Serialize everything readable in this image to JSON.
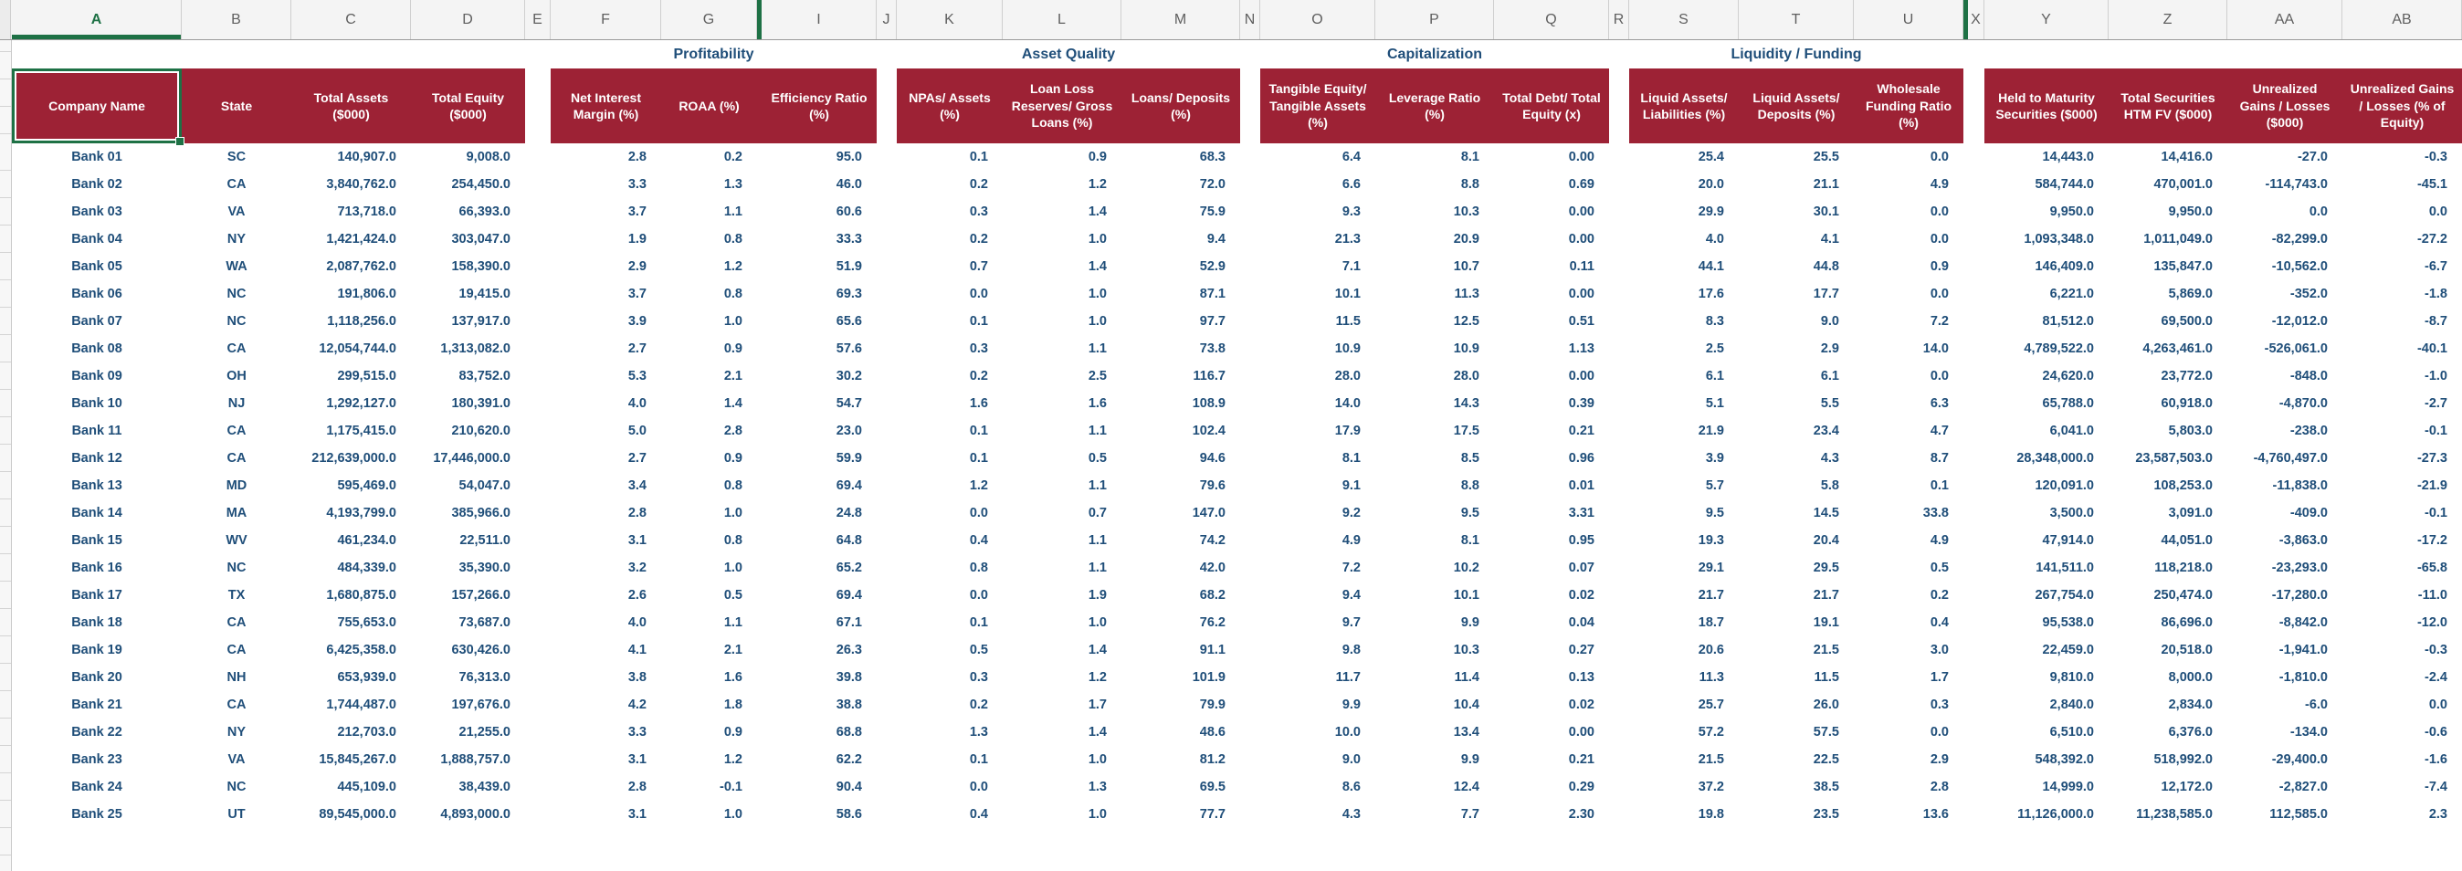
{
  "app": {
    "kind": "spreadsheet",
    "sheet_description": "Bank comparison table"
  },
  "colors": {
    "header_fill": "#9D2235",
    "data_text": "#1F4E79",
    "group_title_text": "#1F4E79",
    "accent_green": "#1E7145"
  },
  "selection": {
    "selected_column_letter": "A",
    "selected_cell_label": "Company Name"
  },
  "groups": [
    {
      "title": "",
      "from": "A",
      "to": "D"
    },
    {
      "title": "Profitability",
      "from": "F",
      "to": "I"
    },
    {
      "title": "Asset Quality",
      "from": "K",
      "to": "M"
    },
    {
      "title": "Capitalization",
      "from": "O",
      "to": "Q"
    },
    {
      "title": "Liquidity / Funding",
      "from": "S",
      "to": "U"
    },
    {
      "title": "",
      "from": "Y",
      "to": "AB"
    }
  ],
  "columns": [
    {
      "letter": "A",
      "kind": "data",
      "align": "center",
      "header": "Company Name",
      "selected": true
    },
    {
      "letter": "B",
      "kind": "data",
      "align": "center",
      "header": "State"
    },
    {
      "letter": "C",
      "kind": "data",
      "align": "right",
      "header": "Total Assets ($000)"
    },
    {
      "letter": "D",
      "kind": "data",
      "align": "right",
      "header": "Total Equity ($000)"
    },
    {
      "letter": "E",
      "kind": "spacer"
    },
    {
      "letter": "F",
      "kind": "data",
      "align": "right",
      "header": "Net Interest Margin (%)"
    },
    {
      "letter": "G",
      "kind": "data",
      "align": "right",
      "header": "ROAA (%)"
    },
    {
      "letter": "H",
      "kind": "hidden"
    },
    {
      "letter": "I",
      "kind": "data",
      "align": "right",
      "header": "Efficiency Ratio (%)"
    },
    {
      "letter": "J",
      "kind": "spacer"
    },
    {
      "letter": "K",
      "kind": "data",
      "align": "right",
      "header": "NPAs/ Assets (%)"
    },
    {
      "letter": "L",
      "kind": "data",
      "align": "right",
      "header": "Loan Loss Reserves/ Gross Loans (%)"
    },
    {
      "letter": "M",
      "kind": "data",
      "align": "right",
      "header": "Loans/ Deposits (%)"
    },
    {
      "letter": "N",
      "kind": "spacer"
    },
    {
      "letter": "O",
      "kind": "data",
      "align": "right",
      "header": "Tangible Equity/ Tangible Assets (%)"
    },
    {
      "letter": "P",
      "kind": "data",
      "align": "right",
      "header": "Leverage Ratio (%)"
    },
    {
      "letter": "Q",
      "kind": "data",
      "align": "right",
      "header": "Total Debt/ Total Equity (x)"
    },
    {
      "letter": "R",
      "kind": "spacer"
    },
    {
      "letter": "S",
      "kind": "data",
      "align": "right",
      "header": "Liquid Assets/ Liabilities (%)"
    },
    {
      "letter": "T",
      "kind": "data",
      "align": "right",
      "header": "Liquid Assets/ Deposits (%)"
    },
    {
      "letter": "U",
      "kind": "data",
      "align": "right",
      "header": "Wholesale Funding Ratio (%)"
    },
    {
      "letter": "V-W",
      "kind": "hidden"
    },
    {
      "letter": "X",
      "kind": "spacer"
    },
    {
      "letter": "Y",
      "kind": "data",
      "align": "right",
      "header": "Held to Maturity Securities ($000)"
    },
    {
      "letter": "Z",
      "kind": "data",
      "align": "right",
      "header": "Total Securities HTM FV ($000)"
    },
    {
      "letter": "AA",
      "kind": "data",
      "align": "right",
      "header": "Unrealized Gains / Losses ($000)"
    },
    {
      "letter": "AB",
      "kind": "data",
      "align": "right",
      "header": "Unrealized Gains / Losses (% of Equity)"
    }
  ],
  "rows": [
    [
      "Bank 01",
      "SC",
      "140,907.0",
      "9,008.0",
      "2.8",
      "0.2",
      "95.0",
      "0.1",
      "0.9",
      "68.3",
      "6.4",
      "8.1",
      "0.00",
      "25.4",
      "25.5",
      "0.0",
      "14,443.0",
      "14,416.0",
      "-27.0",
      "-0.3"
    ],
    [
      "Bank 02",
      "CA",
      "3,840,762.0",
      "254,450.0",
      "3.3",
      "1.3",
      "46.0",
      "0.2",
      "1.2",
      "72.0",
      "6.6",
      "8.8",
      "0.69",
      "20.0",
      "21.1",
      "4.9",
      "584,744.0",
      "470,001.0",
      "-114,743.0",
      "-45.1"
    ],
    [
      "Bank 03",
      "VA",
      "713,718.0",
      "66,393.0",
      "3.7",
      "1.1",
      "60.6",
      "0.3",
      "1.4",
      "75.9",
      "9.3",
      "10.3",
      "0.00",
      "29.9",
      "30.1",
      "0.0",
      "9,950.0",
      "9,950.0",
      "0.0",
      "0.0"
    ],
    [
      "Bank 04",
      "NY",
      "1,421,424.0",
      "303,047.0",
      "1.9",
      "0.8",
      "33.3",
      "0.2",
      "1.0",
      "9.4",
      "21.3",
      "20.9",
      "0.00",
      "4.0",
      "4.1",
      "0.0",
      "1,093,348.0",
      "1,011,049.0",
      "-82,299.0",
      "-27.2"
    ],
    [
      "Bank 05",
      "WA",
      "2,087,762.0",
      "158,390.0",
      "2.9",
      "1.2",
      "51.9",
      "0.7",
      "1.4",
      "52.9",
      "7.1",
      "10.7",
      "0.11",
      "44.1",
      "44.8",
      "0.9",
      "146,409.0",
      "135,847.0",
      "-10,562.0",
      "-6.7"
    ],
    [
      "Bank 06",
      "NC",
      "191,806.0",
      "19,415.0",
      "3.7",
      "0.8",
      "69.3",
      "0.0",
      "1.0",
      "87.1",
      "10.1",
      "11.3",
      "0.00",
      "17.6",
      "17.7",
      "0.0",
      "6,221.0",
      "5,869.0",
      "-352.0",
      "-1.8"
    ],
    [
      "Bank 07",
      "NC",
      "1,118,256.0",
      "137,917.0",
      "3.9",
      "1.0",
      "65.6",
      "0.1",
      "1.0",
      "97.7",
      "11.5",
      "12.5",
      "0.51",
      "8.3",
      "9.0",
      "7.2",
      "81,512.0",
      "69,500.0",
      "-12,012.0",
      "-8.7"
    ],
    [
      "Bank 08",
      "CA",
      "12,054,744.0",
      "1,313,082.0",
      "2.7",
      "0.9",
      "57.6",
      "0.3",
      "1.1",
      "73.8",
      "10.9",
      "10.9",
      "1.13",
      "2.5",
      "2.9",
      "14.0",
      "4,789,522.0",
      "4,263,461.0",
      "-526,061.0",
      "-40.1"
    ],
    [
      "Bank 09",
      "OH",
      "299,515.0",
      "83,752.0",
      "5.3",
      "2.1",
      "30.2",
      "0.2",
      "2.5",
      "116.7",
      "28.0",
      "28.0",
      "0.00",
      "6.1",
      "6.1",
      "0.0",
      "24,620.0",
      "23,772.0",
      "-848.0",
      "-1.0"
    ],
    [
      "Bank 10",
      "NJ",
      "1,292,127.0",
      "180,391.0",
      "4.0",
      "1.4",
      "54.7",
      "1.6",
      "1.6",
      "108.9",
      "14.0",
      "14.3",
      "0.39",
      "5.1",
      "5.5",
      "6.3",
      "65,788.0",
      "60,918.0",
      "-4,870.0",
      "-2.7"
    ],
    [
      "Bank 11",
      "CA",
      "1,175,415.0",
      "210,620.0",
      "5.0",
      "2.8",
      "23.0",
      "0.1",
      "1.1",
      "102.4",
      "17.9",
      "17.5",
      "0.21",
      "21.9",
      "23.4",
      "4.7",
      "6,041.0",
      "5,803.0",
      "-238.0",
      "-0.1"
    ],
    [
      "Bank 12",
      "CA",
      "212,639,000.0",
      "17,446,000.0",
      "2.7",
      "0.9",
      "59.9",
      "0.1",
      "0.5",
      "94.6",
      "8.1",
      "8.5",
      "0.96",
      "3.9",
      "4.3",
      "8.7",
      "28,348,000.0",
      "23,587,503.0",
      "-4,760,497.0",
      "-27.3"
    ],
    [
      "Bank 13",
      "MD",
      "595,469.0",
      "54,047.0",
      "3.4",
      "0.8",
      "69.4",
      "1.2",
      "1.1",
      "79.6",
      "9.1",
      "8.8",
      "0.01",
      "5.7",
      "5.8",
      "0.1",
      "120,091.0",
      "108,253.0",
      "-11,838.0",
      "-21.9"
    ],
    [
      "Bank 14",
      "MA",
      "4,193,799.0",
      "385,966.0",
      "2.8",
      "1.0",
      "24.8",
      "0.0",
      "0.7",
      "147.0",
      "9.2",
      "9.5",
      "3.31",
      "9.5",
      "14.5",
      "33.8",
      "3,500.0",
      "3,091.0",
      "-409.0",
      "-0.1"
    ],
    [
      "Bank 15",
      "WV",
      "461,234.0",
      "22,511.0",
      "3.1",
      "0.8",
      "64.8",
      "0.4",
      "1.1",
      "74.2",
      "4.9",
      "8.1",
      "0.95",
      "19.3",
      "20.4",
      "4.9",
      "47,914.0",
      "44,051.0",
      "-3,863.0",
      "-17.2"
    ],
    [
      "Bank 16",
      "NC",
      "484,339.0",
      "35,390.0",
      "3.2",
      "1.0",
      "65.2",
      "0.8",
      "1.1",
      "42.0",
      "7.2",
      "10.2",
      "0.07",
      "29.1",
      "29.5",
      "0.5",
      "141,511.0",
      "118,218.0",
      "-23,293.0",
      "-65.8"
    ],
    [
      "Bank 17",
      "TX",
      "1,680,875.0",
      "157,266.0",
      "2.6",
      "0.5",
      "69.4",
      "0.0",
      "1.9",
      "68.2",
      "9.4",
      "10.1",
      "0.02",
      "21.7",
      "21.7",
      "0.2",
      "267,754.0",
      "250,474.0",
      "-17,280.0",
      "-11.0"
    ],
    [
      "Bank 18",
      "CA",
      "755,653.0",
      "73,687.0",
      "4.0",
      "1.1",
      "67.1",
      "0.1",
      "1.0",
      "76.2",
      "9.7",
      "9.9",
      "0.04",
      "18.7",
      "19.1",
      "0.4",
      "95,538.0",
      "86,696.0",
      "-8,842.0",
      "-12.0"
    ],
    [
      "Bank 19",
      "CA",
      "6,425,358.0",
      "630,426.0",
      "4.1",
      "2.1",
      "26.3",
      "0.5",
      "1.4",
      "91.1",
      "9.8",
      "10.3",
      "0.27",
      "20.6",
      "21.5",
      "3.0",
      "22,459.0",
      "20,518.0",
      "-1,941.0",
      "-0.3"
    ],
    [
      "Bank 20",
      "NH",
      "653,939.0",
      "76,313.0",
      "3.8",
      "1.6",
      "39.8",
      "0.3",
      "1.2",
      "101.9",
      "11.7",
      "11.4",
      "0.13",
      "11.3",
      "11.5",
      "1.7",
      "9,810.0",
      "8,000.0",
      "-1,810.0",
      "-2.4"
    ],
    [
      "Bank 21",
      "CA",
      "1,744,487.0",
      "197,676.0",
      "4.2",
      "1.8",
      "38.8",
      "0.2",
      "1.7",
      "79.9",
      "9.9",
      "10.4",
      "0.02",
      "25.7",
      "26.0",
      "0.3",
      "2,840.0",
      "2,834.0",
      "-6.0",
      "0.0"
    ],
    [
      "Bank 22",
      "NY",
      "212,703.0",
      "21,255.0",
      "3.3",
      "0.9",
      "68.8",
      "1.3",
      "1.4",
      "48.6",
      "10.0",
      "13.4",
      "0.00",
      "57.2",
      "57.5",
      "0.0",
      "6,510.0",
      "6,376.0",
      "-134.0",
      "-0.6"
    ],
    [
      "Bank 23",
      "VA",
      "15,845,267.0",
      "1,888,757.0",
      "3.1",
      "1.2",
      "62.2",
      "0.1",
      "1.0",
      "81.2",
      "9.0",
      "9.9",
      "0.21",
      "21.5",
      "22.5",
      "2.9",
      "548,392.0",
      "518,992.0",
      "-29,400.0",
      "-1.6"
    ],
    [
      "Bank 24",
      "NC",
      "445,109.0",
      "38,439.0",
      "2.8",
      "-0.1",
      "90.4",
      "0.0",
      "1.3",
      "69.5",
      "8.6",
      "12.4",
      "0.29",
      "37.2",
      "38.5",
      "2.8",
      "14,999.0",
      "12,172.0",
      "-2,827.0",
      "-7.4"
    ],
    [
      "Bank 25",
      "UT",
      "89,545,000.0",
      "4,893,000.0",
      "3.1",
      "1.0",
      "58.6",
      "0.4",
      "1.0",
      "77.7",
      "4.3",
      "7.7",
      "2.30",
      "19.8",
      "23.5",
      "13.6",
      "11,126,000.0",
      "11,238,585.0",
      "112,585.0",
      "2.3"
    ]
  ]
}
